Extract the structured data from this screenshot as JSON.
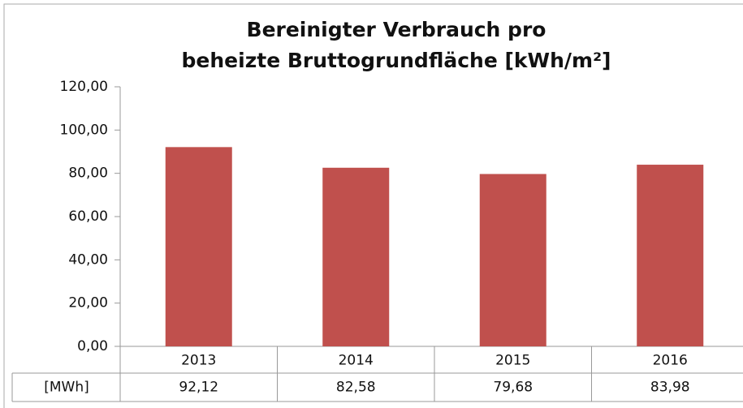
{
  "chart_data": {
    "type": "bar",
    "title": [
      "Bereinigter Verbrauch pro",
      "beheizte Bruttogrundfläche [kWh/m²]"
    ],
    "categories": [
      "2013",
      "2014",
      "2015",
      "2016"
    ],
    "series": [
      {
        "name": "[MWh]",
        "color": "#c0504d",
        "values": [
          92.12,
          82.58,
          79.68,
          83.98
        ],
        "value_labels": [
          "92,12",
          "82,58",
          "79,68",
          "83,98"
        ]
      }
    ],
    "ylim": [
      0,
      120
    ],
    "yticks": [
      {
        "value": 0,
        "label": "0,00"
      },
      {
        "value": 20,
        "label": "20,00"
      },
      {
        "value": 40,
        "label": "40,00"
      },
      {
        "value": 60,
        "label": "60,00"
      },
      {
        "value": 80,
        "label": "80,00"
      },
      {
        "value": 100,
        "label": "100,00"
      },
      {
        "value": 120,
        "label": "120,00"
      }
    ],
    "grid": false
  }
}
